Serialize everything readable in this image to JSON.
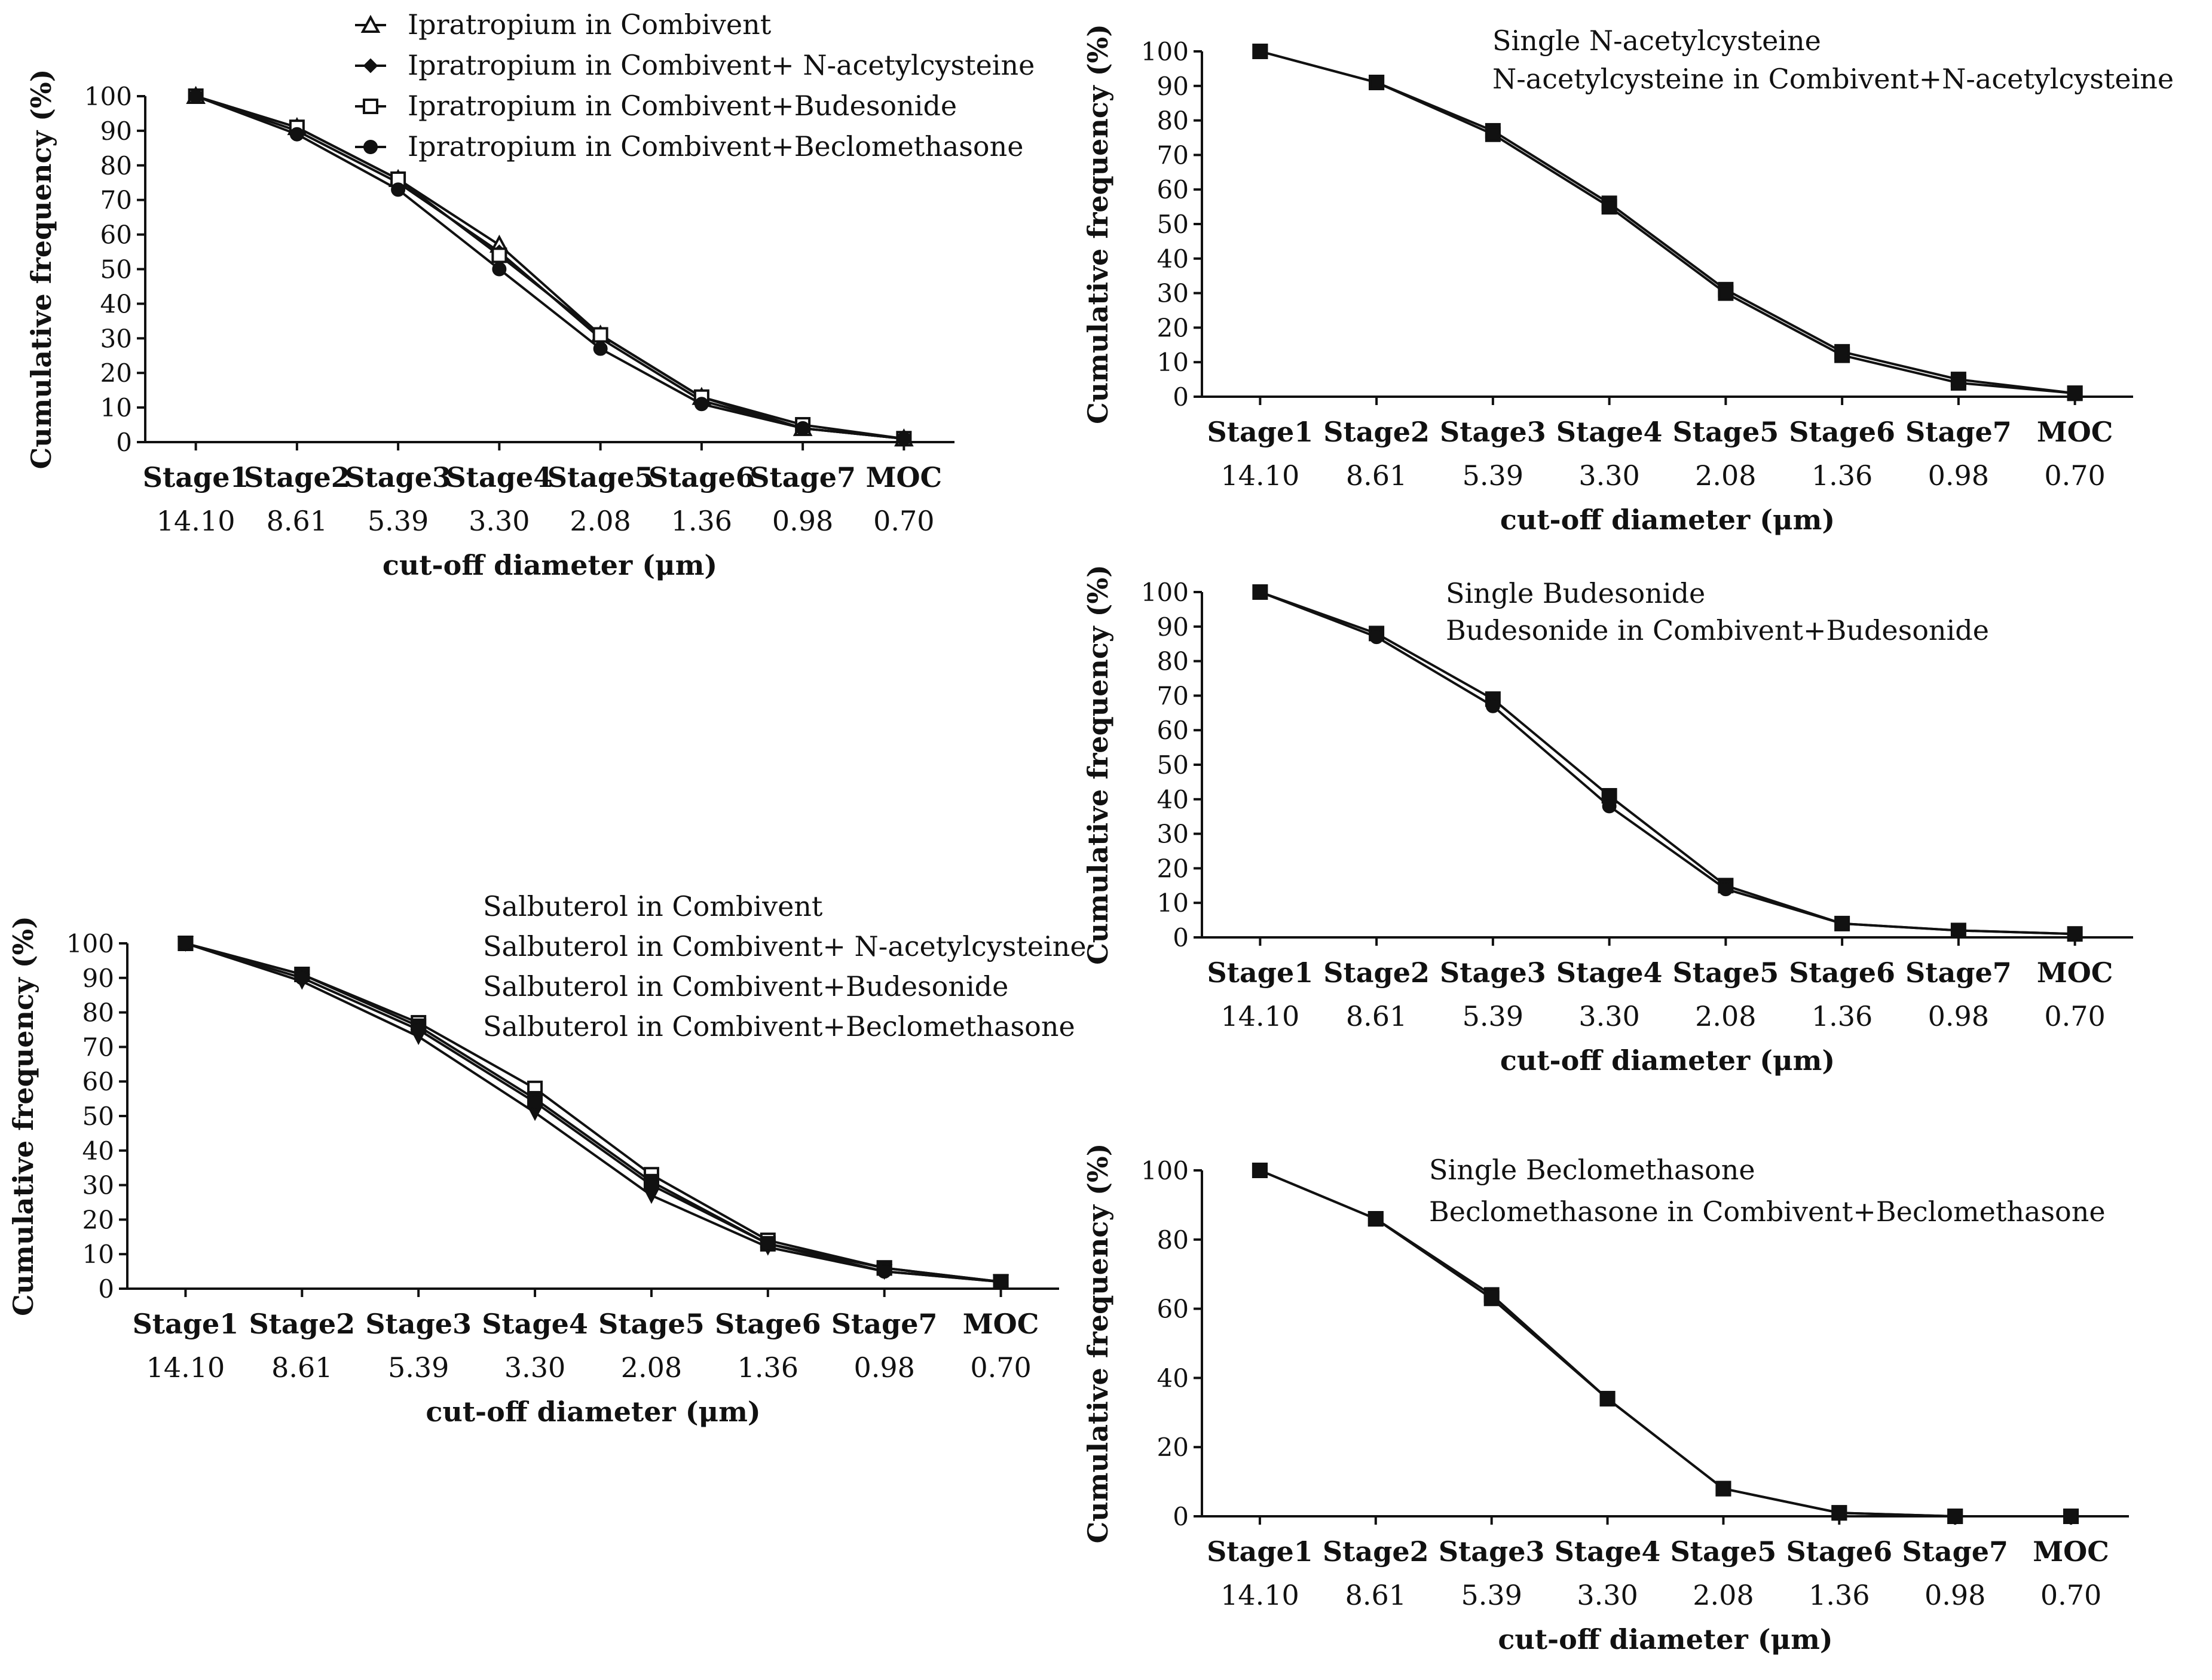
{
  "chart_data": [
    {
      "type": "line",
      "id": "ipratropium",
      "categories": [
        "Stage1",
        "Stage2",
        "Stage3",
        "Stage4",
        "Stage5",
        "Stage6",
        "Stage7",
        "MOC"
      ],
      "cutoffs": [
        "14.10",
        "8.61",
        "5.39",
        "3.30",
        "2.08",
        "1.36",
        "0.98",
        "0.70"
      ],
      "xlabel": "cut-off diameter (μm)",
      "ylabel": "Cumulative frequency (%)",
      "ylim": [
        0,
        100
      ],
      "yticks": [
        0,
        10,
        20,
        30,
        40,
        50,
        60,
        70,
        80,
        90,
        100
      ],
      "legend_position": "top-right",
      "series": [
        {
          "name": "Ipratropium in Combivent",
          "marker": "triangle-open",
          "values": [
            100,
            91,
            76,
            57,
            31,
            13,
            4,
            1
          ]
        },
        {
          "name": "Ipratropium in Combivent+ N-acetylcysteine",
          "marker": "diamond",
          "values": [
            100,
            90,
            75,
            55,
            30,
            12,
            4,
            1
          ]
        },
        {
          "name": "Ipratropium in Combivent+Budesonide",
          "marker": "square-open",
          "values": [
            100,
            91,
            76,
            54,
            31,
            13,
            5,
            1
          ]
        },
        {
          "name": "Ipratropium in Combivent+Beclomethasone",
          "marker": "circle",
          "values": [
            100,
            89,
            73,
            50,
            27,
            11,
            4,
            1
          ]
        }
      ]
    },
    {
      "type": "line",
      "id": "nac",
      "categories": [
        "Stage1",
        "Stage2",
        "Stage3",
        "Stage4",
        "Stage5",
        "Stage6",
        "Stage7",
        "MOC"
      ],
      "cutoffs": [
        "14.10",
        "8.61",
        "5.39",
        "3.30",
        "2.08",
        "1.36",
        "0.98",
        "0.70"
      ],
      "xlabel": "cut-off diameter (μm)",
      "ylabel": "Cumulative frequency (%)",
      "ylim": [
        0,
        100
      ],
      "yticks": [
        0,
        10,
        20,
        30,
        40,
        50,
        60,
        70,
        80,
        90,
        100
      ],
      "legend_position": "top-right",
      "series": [
        {
          "name": "Single N-acetylcysteine",
          "marker": "square",
          "values": [
            100,
            91,
            77,
            56,
            31,
            13,
            5,
            1
          ]
        },
        {
          "name": "N-acetylcysteine in Combivent+N-acetylcysteine",
          "marker": "square",
          "values": [
            100,
            91,
            76,
            55,
            30,
            12,
            4,
            1
          ]
        }
      ]
    },
    {
      "type": "line",
      "id": "salbuterol",
      "categories": [
        "Stage1",
        "Stage2",
        "Stage3",
        "Stage4",
        "Stage5",
        "Stage6",
        "Stage7",
        "MOC"
      ],
      "cutoffs": [
        "14.10",
        "8.61",
        "5.39",
        "3.30",
        "2.08",
        "1.36",
        "0.98",
        "0.70"
      ],
      "xlabel": "cut-off diameter (μm)",
      "ylabel": "Cumulative frequency (%)",
      "ylim": [
        0,
        100
      ],
      "yticks": [
        0,
        10,
        20,
        30,
        40,
        50,
        60,
        70,
        80,
        90,
        100
      ],
      "legend_position": "top-right",
      "series": [
        {
          "name": "Salbuterol in Combivent",
          "marker": "square-open",
          "values": [
            100,
            91,
            77,
            58,
            33,
            14,
            6,
            2
          ]
        },
        {
          "name": "Salbuterol in Combivent+ N-acetylcysteine",
          "marker": "triangle-down",
          "values": [
            100,
            89,
            73,
            51,
            27,
            12,
            5,
            2
          ]
        },
        {
          "name": "Salbuterol in Combivent+Budesonide",
          "marker": "square",
          "values": [
            100,
            91,
            76,
            55,
            31,
            13,
            6,
            2
          ]
        },
        {
          "name": "Salbuterol in Combivent+Beclomethasone",
          "marker": "circle",
          "values": [
            100,
            90,
            75,
            54,
            30,
            13,
            5,
            2
          ]
        }
      ]
    },
    {
      "type": "line",
      "id": "budesonide",
      "categories": [
        "Stage1",
        "Stage2",
        "Stage3",
        "Stage4",
        "Stage5",
        "Stage6",
        "Stage7",
        "MOC"
      ],
      "cutoffs": [
        "14.10",
        "8.61",
        "5.39",
        "3.30",
        "2.08",
        "1.36",
        "0.98",
        "0.70"
      ],
      "xlabel": "cut-off diameter (μm)",
      "ylabel": "Cumulative frequency (%)",
      "ylim": [
        0,
        100
      ],
      "yticks": [
        0,
        10,
        20,
        30,
        40,
        50,
        60,
        70,
        80,
        90,
        100
      ],
      "legend_position": "top-right",
      "series": [
        {
          "name": "Single Budesonide",
          "marker": "square",
          "values": [
            100,
            88,
            69,
            41,
            15,
            4,
            2,
            1
          ]
        },
        {
          "name": "Budesonide in Combivent+Budesonide",
          "marker": "circle",
          "values": [
            100,
            87,
            67,
            38,
            14,
            4,
            2,
            1
          ]
        }
      ]
    },
    {
      "type": "line",
      "id": "beclomethasone",
      "categories": [
        "Stage1",
        "Stage2",
        "Stage3",
        "Stage4",
        "Stage5",
        "Stage6",
        "Stage7",
        "MOC"
      ],
      "cutoffs": [
        "14.10",
        "8.61",
        "5.39",
        "3.30",
        "2.08",
        "1.36",
        "0.98",
        "0.70"
      ],
      "xlabel": "cut-off diameter (μm)",
      "ylabel": "Cumulative frequency (%)",
      "ylim": [
        0,
        100
      ],
      "yticks": [
        0,
        20,
        40,
        60,
        80,
        100
      ],
      "legend_position": "top-right",
      "series": [
        {
          "name": "Single Beclomethasone",
          "marker": "square",
          "values": [
            100,
            86,
            64,
            34,
            8,
            1,
            0,
            0
          ]
        },
        {
          "name": "Beclomethasone in Combivent+Beclomethasone",
          "marker": "square",
          "values": [
            100,
            86,
            63,
            34,
            8,
            1,
            0,
            0
          ]
        }
      ]
    }
  ]
}
